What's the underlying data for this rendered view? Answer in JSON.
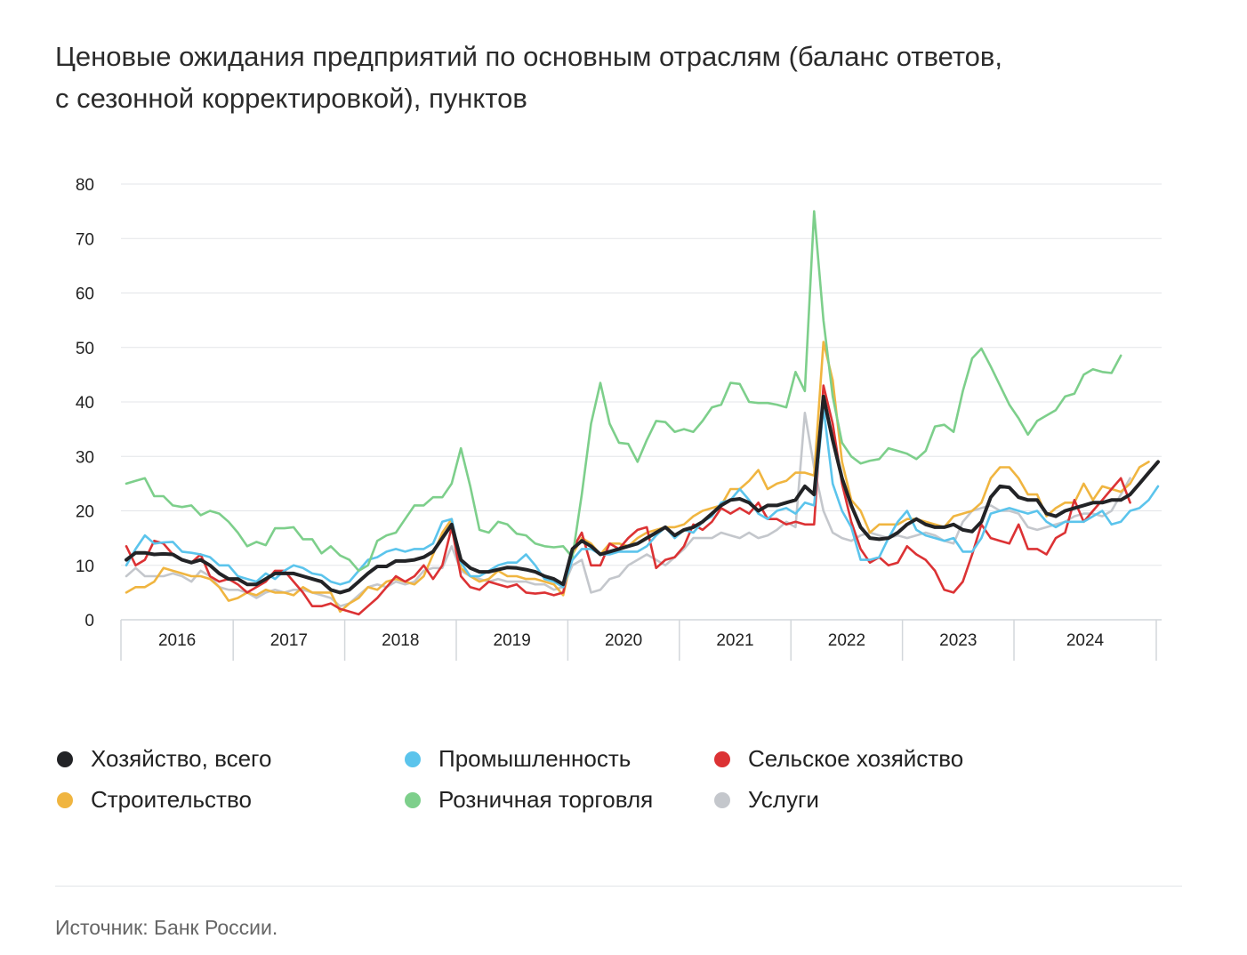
{
  "title_line1": "Ценовые ожидания предприятий по основным отраслям (баланс ответов,",
  "title_line2": "с сезонной корректировкой), пунктов",
  "source": "Источник: Банк России.",
  "chart_data": {
    "type": "line",
    "title": "Ценовые ожидания предприятий по основным отраслям (баланс ответов, с сезонной корректировкой), пунктов",
    "x_start": "2016-01",
    "x_end": "2024-12",
    "frequency": "monthly",
    "x_ticks": [
      "2016",
      "2017",
      "2018",
      "2019",
      "2020",
      "2021",
      "2022",
      "2023",
      "2024"
    ],
    "ylim": [
      0,
      80
    ],
    "yticks": [
      0,
      10,
      20,
      30,
      40,
      50,
      60,
      70,
      80
    ],
    "grid": true,
    "legend_position": "bottom",
    "series": [
      {
        "name": "Хозяйство, всего",
        "color": "#222326",
        "values": [
          11,
          12.3,
          12.3,
          12,
          12.1,
          12,
          11,
          10.5,
          11,
          10,
          8.5,
          7.5,
          7.5,
          6.5,
          6.5,
          7.5,
          8.5,
          8.5,
          8.5,
          8,
          7.5,
          7,
          5.5,
          5,
          5.5,
          7,
          8.5,
          9.8,
          9.8,
          10.8,
          10.8,
          11,
          11.5,
          12.5,
          15,
          17.5,
          11,
          9.5,
          8.8,
          8.8,
          9.2,
          9.6,
          9.5,
          9.2,
          8.8,
          8,
          7.5,
          6.5,
          13,
          14.5,
          13.5,
          12,
          12.5,
          13,
          13.5,
          14,
          15,
          16,
          17,
          15.5,
          16.5,
          17,
          18,
          19.5,
          21,
          22,
          22.2,
          21.5,
          20,
          21,
          21,
          21.5,
          22,
          24.5,
          23,
          41,
          33,
          26,
          21,
          17,
          15,
          14.8,
          15,
          16,
          17.5,
          18.5,
          17.5,
          17,
          17,
          17.5,
          16.5,
          16.2,
          18,
          22.5,
          24.5,
          24.3,
          22.5,
          22,
          22,
          19.5,
          19,
          20,
          20.5,
          21,
          21.5,
          21.5,
          22,
          22,
          23,
          25,
          27,
          29
        ]
      },
      {
        "name": "Промышленность",
        "color": "#5bc4ec",
        "values": [
          10,
          13,
          15.5,
          14,
          14.2,
          14.3,
          12.5,
          12.3,
          12,
          11.5,
          10,
          10,
          8,
          7.5,
          7,
          8.5,
          7.5,
          9,
          10,
          9.5,
          8.5,
          8.2,
          7,
          6.5,
          7,
          9,
          11,
          11.5,
          12.5,
          13,
          12.5,
          13,
          13,
          14,
          18,
          18.5,
          10.5,
          8,
          8,
          9,
          10,
          10.5,
          10.5,
          12,
          10,
          7.5,
          7,
          6,
          11,
          13,
          13,
          12,
          12,
          12.5,
          12.5,
          12.5,
          13.5,
          15.5,
          17,
          15,
          16.5,
          16,
          18,
          19,
          21.5,
          22,
          24,
          22,
          19.5,
          18.5,
          20,
          20.5,
          19.5,
          21.5,
          21,
          39,
          25,
          20,
          17,
          11,
          11,
          11.5,
          15,
          18,
          20,
          16.5,
          15.5,
          15,
          14.5,
          15,
          12.5,
          12.5,
          15,
          19.5,
          20,
          20.5,
          20,
          19.5,
          20,
          18,
          17,
          18,
          18,
          18,
          19,
          20,
          17.5,
          18,
          20,
          20.5,
          22,
          24.5
        ]
      },
      {
        "name": "Сельское хозяйство",
        "color": "#dc3234",
        "values": [
          13.5,
          10,
          11,
          14.5,
          14,
          12,
          11,
          10.5,
          12,
          8,
          7,
          7.5,
          6.5,
          5,
          6,
          7,
          9,
          9,
          7,
          5,
          2.5,
          2.5,
          3,
          2,
          1.5,
          1,
          2.5,
          4,
          6,
          8,
          7,
          8,
          10,
          7.5,
          10,
          17,
          8,
          6,
          5.5,
          7,
          6.5,
          6,
          6.5,
          5,
          4.8,
          5,
          4.5,
          5,
          13,
          16,
          10,
          10,
          14,
          13,
          15,
          16.5,
          17,
          9.5,
          11,
          11.5,
          13.5,
          17.5,
          16.5,
          18,
          20.5,
          19.5,
          20.5,
          19.5,
          21.5,
          18.5,
          18.5,
          17.5,
          18,
          17.5,
          17.5,
          43,
          36,
          25,
          18,
          13,
          10.5,
          11.5,
          10,
          10.5,
          13.5,
          12,
          11,
          9,
          5.5,
          5,
          7,
          12,
          17.5,
          15,
          14.5,
          14,
          17.5,
          13,
          13,
          12,
          15,
          16,
          22,
          18,
          20,
          22,
          24,
          26,
          21.5
        ]
      },
      {
        "name": "Строительство",
        "color": "#f0b540",
        "values": [
          5,
          6,
          6,
          7,
          9.5,
          9,
          8.5,
          8,
          8,
          7.5,
          6,
          3.5,
          4,
          5,
          4.5,
          5.5,
          5,
          5,
          4.5,
          6,
          5,
          5,
          5,
          1.5,
          3,
          4,
          6,
          5.5,
          7,
          7.5,
          7,
          6.5,
          8,
          12,
          16,
          18.5,
          9.5,
          8,
          7,
          7.5,
          9,
          8,
          8,
          7.5,
          7.5,
          7,
          6.5,
          4.5,
          12,
          15,
          14,
          12,
          14,
          14,
          13.5,
          15,
          16,
          16.5,
          17,
          17,
          17.5,
          19,
          20,
          20.5,
          21,
          24,
          24,
          25.5,
          27.5,
          24,
          25,
          25.5,
          27,
          27,
          26.5,
          51,
          44,
          29,
          22,
          20,
          16,
          17.5,
          17.5,
          17.5,
          18.5,
          18.5,
          18,
          17.5,
          17,
          19,
          19.5,
          20,
          21.5,
          26,
          28,
          28,
          26,
          23,
          23,
          19,
          20.5,
          21.5,
          21.5,
          25,
          22,
          24.5,
          24,
          23.5,
          25,
          28,
          29
        ]
      },
      {
        "name": "Розничная торговля",
        "color": "#7dcf8b",
        "values": [
          25,
          25.5,
          26,
          22.7,
          22.7,
          21,
          20.7,
          21,
          19.2,
          20,
          19.5,
          18,
          16,
          13.5,
          14.3,
          13.7,
          16.8,
          16.8,
          17,
          14.8,
          14.8,
          12.2,
          13.5,
          11.8,
          11,
          9,
          10,
          14.5,
          15.5,
          16,
          18.5,
          21,
          21,
          22.5,
          22.5,
          25,
          31.5,
          24.5,
          16.5,
          16,
          18,
          17.5,
          15.8,
          15.5,
          14,
          13.5,
          13.3,
          13.5,
          11.5,
          23,
          36,
          43.5,
          36,
          32.5,
          32.3,
          29,
          33,
          36.5,
          36.3,
          34.5,
          35,
          34.5,
          36.5,
          39,
          39.5,
          43.5,
          43.3,
          40,
          39.8,
          39.8,
          39.5,
          39,
          45.5,
          42,
          75,
          55,
          41,
          32.5,
          30,
          28.7,
          29.2,
          29.5,
          31.5,
          31,
          30.5,
          29.5,
          31,
          35.5,
          35.8,
          34.5,
          42,
          48,
          49.8,
          46.5,
          43,
          39.5,
          37,
          34,
          36.5,
          37.5,
          38.5,
          41,
          41.5,
          45,
          46,
          45.5,
          45.3,
          48.5
        ]
      },
      {
        "name": "Услуги",
        "color": "#c4c7cc",
        "values": [
          8,
          9.5,
          8,
          8,
          8,
          8.5,
          8,
          7,
          9,
          8,
          6,
          5.5,
          5.5,
          5,
          4,
          5,
          5.5,
          5,
          5.5,
          5.5,
          5,
          4.5,
          4,
          2.5,
          3,
          4.5,
          6,
          6.5,
          6,
          7,
          6.5,
          7,
          9,
          9.5,
          9.5,
          13.5,
          9,
          8,
          7.5,
          7,
          7.5,
          7,
          7,
          7,
          6.5,
          6.5,
          5.5,
          6,
          10,
          11,
          5,
          5.5,
          7.5,
          8,
          10,
          11,
          12,
          11,
          10,
          11.5,
          13,
          15,
          15,
          15,
          16,
          15.5,
          15,
          16,
          15,
          15.5,
          16.5,
          18,
          17,
          38,
          28,
          20,
          16,
          15,
          14.5,
          15.5,
          16,
          15.5,
          15,
          15.5,
          15,
          15.5,
          16,
          15.5,
          14.5,
          14,
          18,
          20,
          20.5,
          21,
          20,
          20,
          19.5,
          17,
          16.5,
          17,
          17.5,
          18,
          19,
          19.5,
          19.5,
          19,
          20,
          23,
          26
        ]
      }
    ]
  }
}
